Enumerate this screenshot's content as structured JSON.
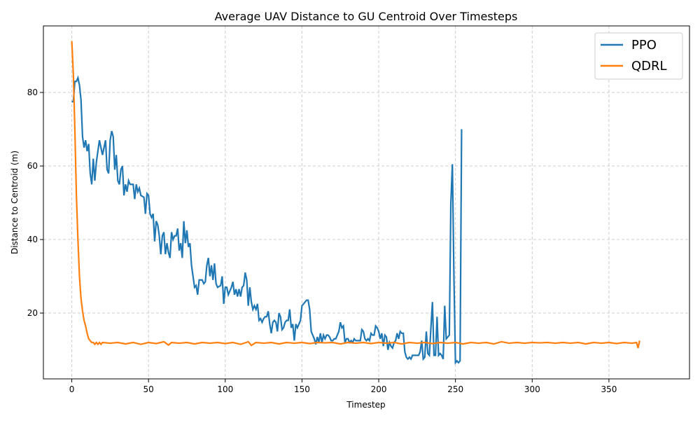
{
  "chart_data": {
    "type": "line",
    "title": "Average UAV Distance to GU Centroid Over Timesteps",
    "x_label": "Timestep",
    "y_label": "Distance to Centroid (m)",
    "xlim": [
      -18.5,
      402.5
    ],
    "xticks": [
      0,
      50,
      100,
      150,
      200,
      250,
      300,
      350
    ],
    "ylim": [
      2.1,
      98.1
    ],
    "yticks": [
      20,
      40,
      60,
      80
    ],
    "grid": true,
    "legend": "upper right",
    "series": [
      {
        "name": "PPO",
        "color": "#1f77b4",
        "x": [
          0,
          1,
          2,
          3,
          4,
          5,
          6,
          7,
          8,
          9,
          10,
          11,
          12,
          13,
          14,
          15,
          16,
          18,
          20,
          22,
          23,
          24,
          25,
          26,
          27,
          28,
          29,
          30,
          31,
          32,
          33,
          34,
          35,
          36,
          37,
          38,
          40,
          41,
          42,
          43,
          44,
          45,
          47,
          48,
          49,
          50,
          51,
          52,
          53,
          54,
          55,
          56,
          57,
          58,
          59,
          60,
          61,
          62,
          63,
          64,
          65,
          66,
          67,
          68,
          69,
          70,
          71,
          72,
          73,
          74,
          75,
          76,
          77,
          78,
          79,
          80,
          81,
          82,
          83,
          85,
          86,
          87,
          88,
          89,
          90,
          91,
          92,
          93,
          94,
          95,
          97,
          98,
          99,
          100,
          101,
          102,
          104,
          105,
          106,
          107,
          108,
          109,
          110,
          111,
          112,
          113,
          114,
          115,
          116,
          117,
          118,
          119,
          120,
          121,
          122,
          123,
          124,
          125,
          126,
          127,
          128,
          129,
          130,
          131,
          132,
          133,
          134,
          135,
          136,
          137,
          138,
          139,
          140,
          141,
          142,
          143,
          144,
          145,
          146,
          147,
          148,
          149,
          150,
          151,
          152,
          153,
          154,
          155,
          156,
          157,
          158,
          159,
          160,
          161,
          162,
          163,
          164,
          165,
          166,
          167,
          168,
          169,
          170,
          171,
          172,
          173,
          174,
          175,
          176,
          177,
          178,
          179,
          180,
          181,
          182,
          183,
          184,
          185,
          186,
          187,
          188,
          189,
          190,
          191,
          192,
          193,
          194,
          195,
          196,
          197,
          198,
          199,
          200,
          201,
          202,
          203,
          204,
          205,
          206,
          207,
          208,
          209,
          210,
          211,
          212,
          213,
          214,
          215,
          216,
          217,
          218,
          219,
          220,
          221,
          222,
          224,
          225,
          226,
          227,
          228,
          229,
          230,
          231,
          232,
          233,
          234,
          235,
          236,
          237,
          238,
          239,
          240,
          241,
          242,
          243,
          244,
          245,
          246,
          247,
          248,
          249,
          250,
          251,
          252,
          253,
          254
        ],
        "values": [
          77.5,
          77.5,
          83,
          83,
          84,
          82,
          78,
          68,
          65,
          67,
          64,
          66,
          58,
          55,
          62,
          56,
          61,
          67,
          63,
          67,
          59,
          58,
          67,
          69.5,
          68,
          59,
          63,
          56,
          55,
          59,
          60,
          52,
          55,
          53,
          56,
          55,
          55,
          51,
          55,
          53,
          54,
          52,
          51.5,
          47,
          52.5,
          52,
          47,
          46,
          47,
          39.5,
          45,
          44,
          41,
          36,
          41,
          42,
          36,
          39,
          36.5,
          35,
          42,
          40,
          41,
          41,
          43,
          37,
          39,
          35,
          45,
          39,
          42.5,
          38,
          39,
          33,
          30,
          27,
          27.5,
          25,
          29,
          29,
          28,
          28.5,
          33,
          35,
          30,
          33,
          29,
          33.5,
          28,
          27,
          27.5,
          30,
          22.5,
          27,
          27,
          25,
          27,
          28.5,
          25,
          26.5,
          24.5,
          26.5,
          24.5,
          27,
          27.5,
          31,
          29,
          22,
          27,
          23,
          21,
          22,
          21,
          22.5,
          18,
          18.5,
          17.5,
          18.5,
          19,
          19,
          20.5,
          17,
          14.5,
          17.5,
          18,
          17.5,
          15,
          20,
          19,
          15.5,
          16,
          17.5,
          18,
          18,
          21,
          16,
          17,
          12.5,
          17,
          16,
          17,
          18,
          22,
          22.5,
          23,
          23.5,
          23.5,
          21,
          15,
          14,
          13,
          11.5,
          13.5,
          12,
          14.5,
          12,
          14,
          13,
          14,
          14,
          13.5,
          12.5,
          12.5,
          13,
          13,
          14,
          15,
          17.5,
          16,
          16.5,
          12,
          13,
          13,
          12,
          12.5,
          12,
          13,
          12.5,
          12.5,
          12.5,
          12.5,
          15.5,
          15,
          13,
          12.5,
          13,
          12.5,
          14.5,
          14,
          14,
          16.5,
          16,
          15,
          13,
          14.5,
          11,
          14,
          13.5,
          10,
          12,
          11,
          10.5,
          12,
          12.5,
          14.5,
          13,
          15,
          14.5,
          14.5,
          9.5,
          8,
          7.5,
          8,
          7.5,
          8.5,
          8.5,
          8.5,
          8.5,
          9.5,
          12.5,
          7.5,
          8,
          15,
          9,
          8.5,
          16,
          23,
          8.5,
          8.5,
          19,
          8.5,
          9,
          8.5,
          7.5,
          22,
          13,
          13.5,
          14,
          50,
          60.5,
          30,
          6.5,
          7,
          6.5,
          7,
          70
        ]
      },
      {
        "name": "QDRL",
        "color": "#ff7f0e",
        "x": [
          0,
          1,
          2,
          3,
          4,
          5,
          6,
          7,
          8,
          9,
          10,
          11,
          12,
          13,
          14,
          15,
          16,
          17,
          18,
          19,
          20,
          25,
          30,
          35,
          40,
          45,
          50,
          55,
          60,
          63,
          65,
          70,
          75,
          80,
          85,
          90,
          95,
          100,
          105,
          110,
          115,
          117,
          120,
          125,
          130,
          135,
          140,
          145,
          150,
          155,
          160,
          165,
          170,
          175,
          180,
          185,
          190,
          195,
          200,
          205,
          210,
          215,
          220,
          225,
          230,
          235,
          240,
          245,
          250,
          255,
          260,
          265,
          270,
          275,
          280,
          285,
          290,
          295,
          300,
          305,
          310,
          315,
          320,
          325,
          330,
          335,
          340,
          345,
          350,
          355,
          360,
          365,
          368,
          369,
          370
        ],
        "values": [
          94,
          85,
          70,
          52,
          40,
          30,
          24,
          20.5,
          18,
          16.5,
          14.5,
          13,
          12.5,
          12,
          12,
          11.5,
          12,
          11.5,
          12,
          11.5,
          12,
          11.8,
          12,
          11.6,
          12,
          11.5,
          12,
          11.7,
          12.2,
          11.3,
          12,
          11.8,
          12,
          11.6,
          12,
          11.8,
          12,
          11.7,
          12,
          11.5,
          12.2,
          11.2,
          12,
          11.8,
          12,
          11.6,
          12,
          11.8,
          12,
          11.7,
          12,
          11.9,
          12,
          11.6,
          12,
          11.8,
          12,
          11.7,
          12,
          11.8,
          12,
          11.6,
          12,
          11.8,
          12,
          11.7,
          12,
          11.8,
          12,
          11.6,
          12,
          11.8,
          12,
          11.6,
          12.2,
          11.8,
          12,
          11.8,
          12,
          11.9,
          12,
          11.8,
          12,
          11.8,
          12,
          11.6,
          12,
          11.8,
          12,
          11.7,
          12,
          11.8,
          12,
          10.5,
          12.5
        ]
      }
    ]
  }
}
